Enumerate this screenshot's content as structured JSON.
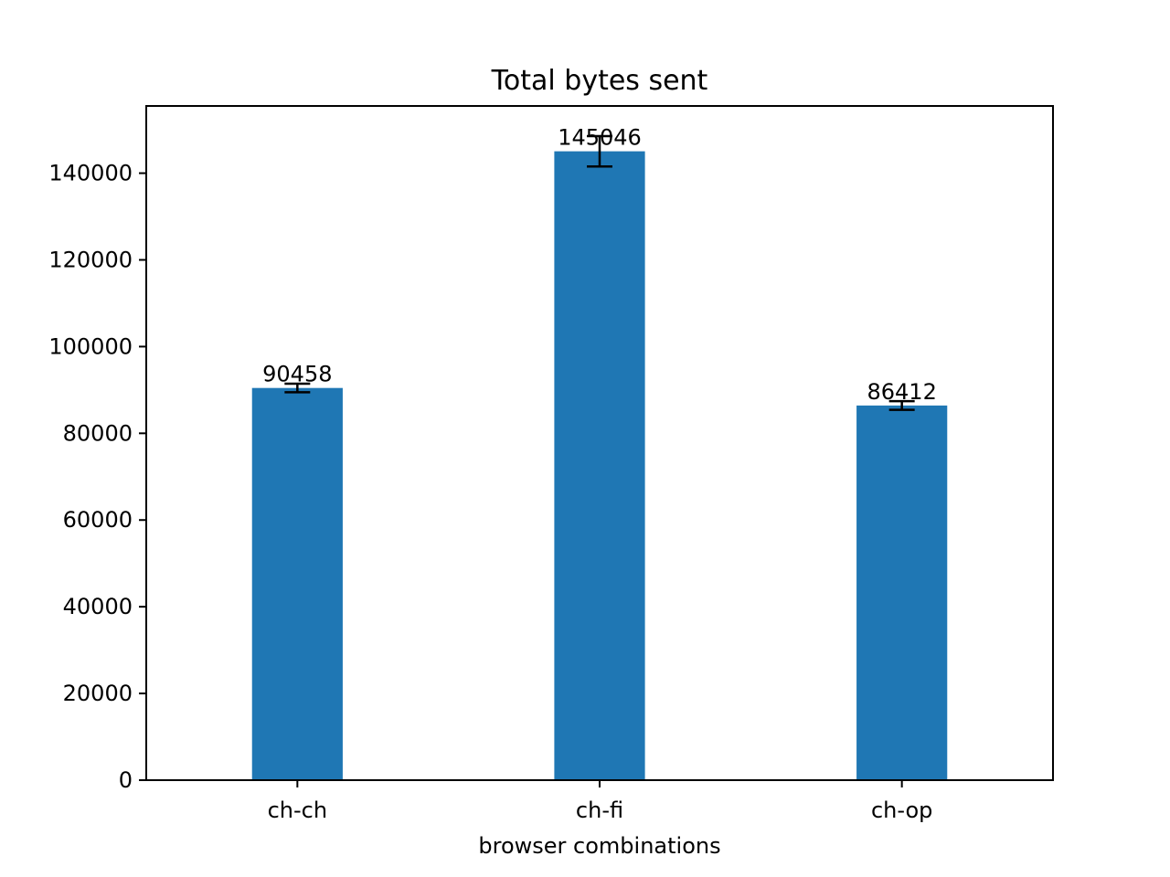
{
  "chart_data": {
    "type": "bar",
    "title": "Total bytes sent",
    "xlabel": "browser combinations",
    "ylabel": "",
    "categories": [
      "ch-ch",
      "ch-fi",
      "ch-op"
    ],
    "values": [
      90458,
      145046,
      86412
    ],
    "value_labels": [
      "90458",
      "145046",
      "86412"
    ],
    "error_bars": [
      1000,
      3500,
      1000
    ],
    "ylim": [
      0,
      155500
    ],
    "yticks": [
      0,
      20000,
      40000,
      60000,
      80000,
      100000,
      120000,
      140000
    ],
    "ytick_labels": [
      "0",
      "20000",
      "40000",
      "60000",
      "80000",
      "100000",
      "120000",
      "140000"
    ],
    "grid": false,
    "legend": "none",
    "colors": {
      "bar": "#1f77b4",
      "error_bar": "#000000",
      "axis": "#000000"
    }
  }
}
